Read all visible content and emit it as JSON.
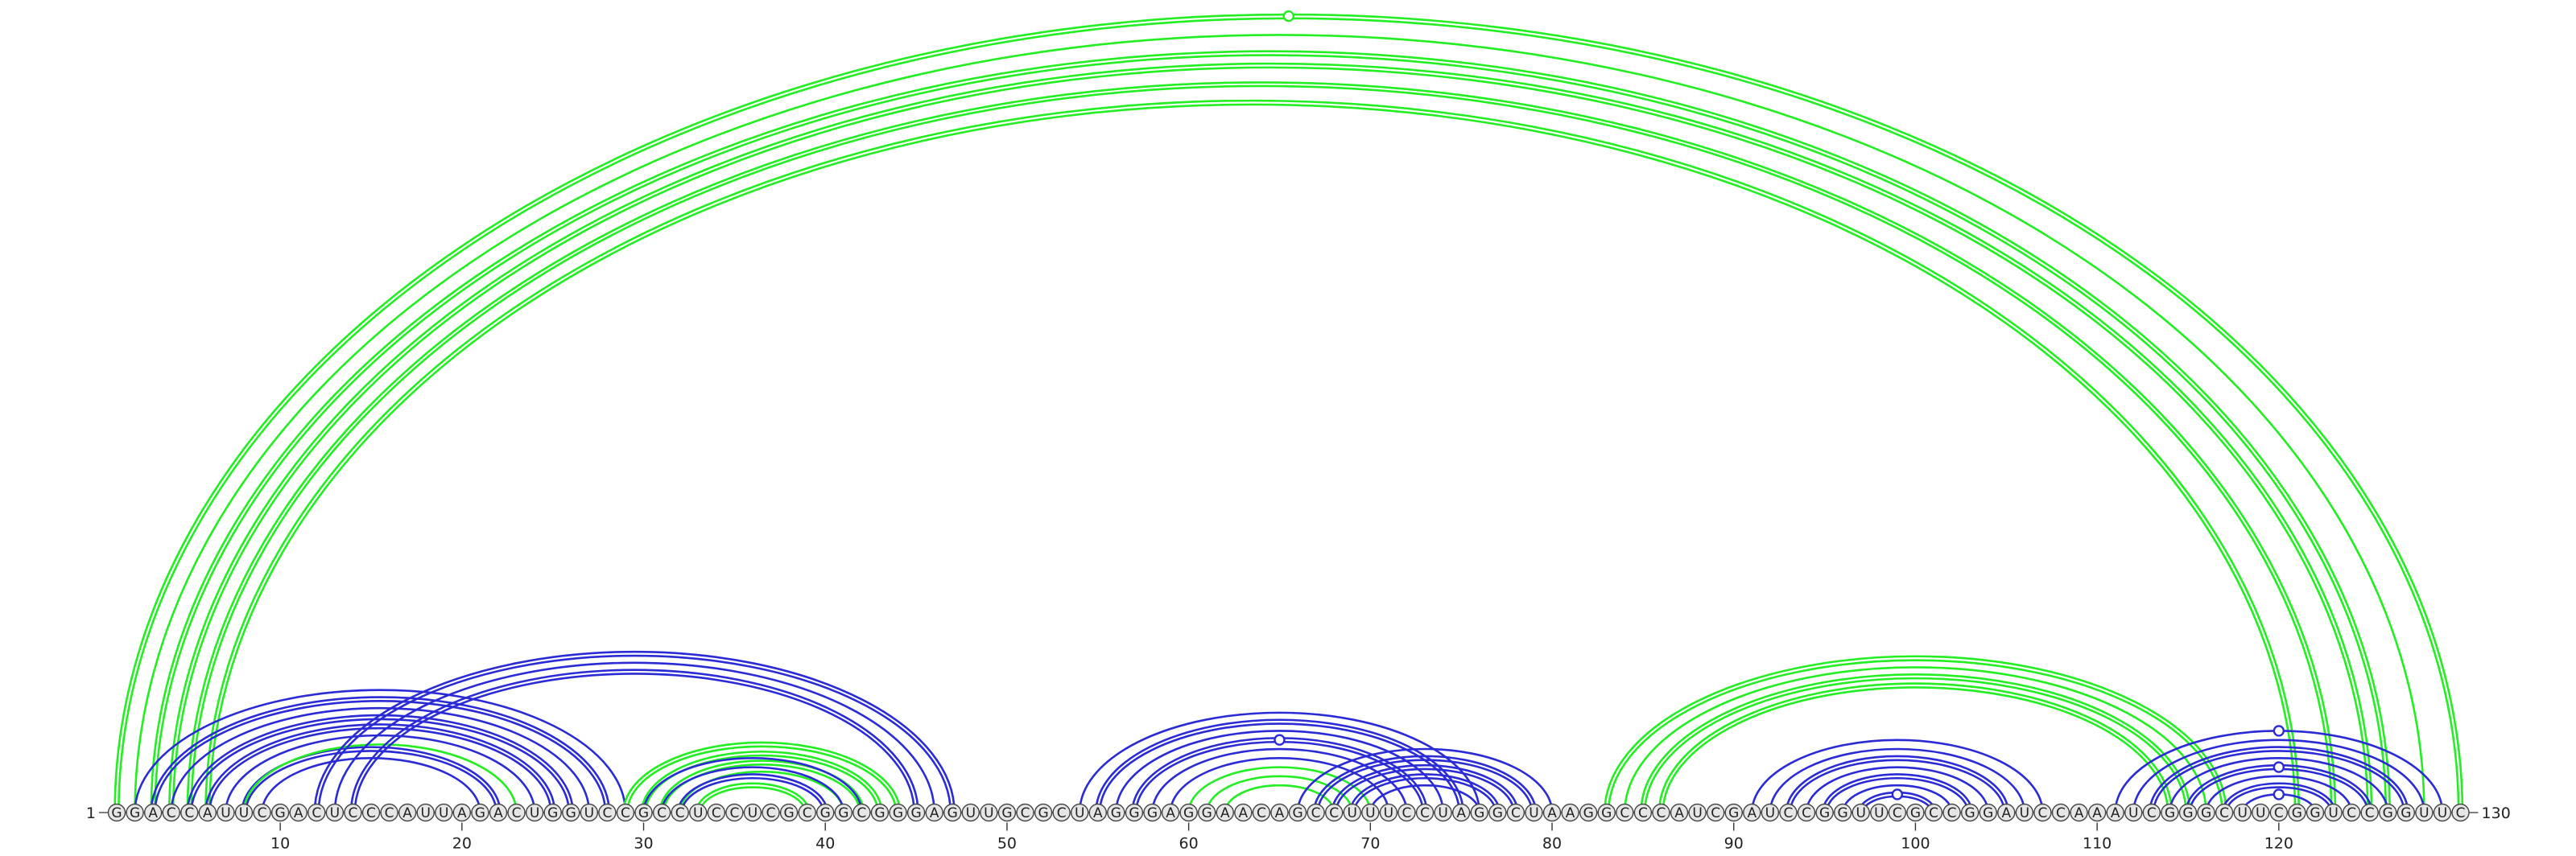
{
  "chart_data": {
    "type": "arc",
    "sequence": "GGACCAUUCGACUCCCAUUAGACUGGUCCGCCUCCUCGCGGCGGGAGUUGCGCUAGGGAGGAACAGCCUUUCCUAGGCUAAGGCCCAUCGAUCCGGUUCGCCGGAUCCAAAUCGGGCUUCGGUCCGGUUC",
    "length": 130,
    "start_label": "1",
    "end_label": "130",
    "ticks": [
      "10",
      "20",
      "30",
      "40",
      "50",
      "60",
      "70",
      "80",
      "90",
      "100",
      "110",
      "120"
    ],
    "colors": {
      "structure_a": "#2b2bd6",
      "structure_b": "#22ee22"
    },
    "arcs": [
      {
        "i": 1,
        "j": 130,
        "color": "green",
        "strands": 2
      },
      {
        "i": 2,
        "j": 128,
        "color": "green",
        "strands": 1
      },
      {
        "i": 3,
        "j": 126,
        "color": "green",
        "strands": 2
      },
      {
        "i": 4,
        "j": 125,
        "color": "green",
        "strands": 2
      },
      {
        "i": 5,
        "j": 123,
        "color": "green",
        "strands": 2
      },
      {
        "i": 6,
        "j": 121,
        "color": "green",
        "strands": 2
      },
      {
        "i": 2,
        "j": 29,
        "color": "blue",
        "strands": 1
      },
      {
        "i": 3,
        "j": 28,
        "color": "blue",
        "strands": 2
      },
      {
        "i": 4,
        "j": 27,
        "color": "blue",
        "strands": 1
      },
      {
        "i": 5,
        "j": 26,
        "color": "blue",
        "strands": 2
      },
      {
        "i": 6,
        "j": 25,
        "color": "blue",
        "strands": 2
      },
      {
        "i": 7,
        "j": 24,
        "color": "blue",
        "strands": 1
      },
      {
        "i": 8,
        "j": 22,
        "color": "blue",
        "strands": 2
      },
      {
        "i": 9,
        "j": 21,
        "color": "blue",
        "strands": 1
      },
      {
        "i": 8,
        "j": 23,
        "color": "green",
        "strands": 1
      },
      {
        "i": 12,
        "j": 47,
        "color": "blue",
        "strands": 2
      },
      {
        "i": 13,
        "j": 46,
        "color": "blue",
        "strands": 1
      },
      {
        "i": 14,
        "j": 45,
        "color": "blue",
        "strands": 2
      },
      {
        "i": 29,
        "j": 44,
        "color": "green",
        "strands": 2
      },
      {
        "i": 30,
        "j": 43,
        "color": "green",
        "strands": 2
      },
      {
        "i": 31,
        "j": 42,
        "color": "green",
        "strands": 2
      },
      {
        "i": 32,
        "j": 41,
        "color": "green",
        "strands": 1
      },
      {
        "i": 30,
        "j": 42,
        "color": "blue",
        "strands": 1
      },
      {
        "i": 31,
        "j": 41,
        "color": "blue",
        "strands": 1
      },
      {
        "i": 32,
        "j": 40,
        "color": "blue",
        "strands": 2
      },
      {
        "i": 33,
        "j": 39,
        "color": "green",
        "strands": 2
      },
      {
        "i": 54,
        "j": 76,
        "color": "blue",
        "strands": 1
      },
      {
        "i": 55,
        "j": 75,
        "color": "blue",
        "strands": 2
      },
      {
        "i": 56,
        "j": 74,
        "color": "blue",
        "strands": 1
      },
      {
        "i": 57,
        "j": 73,
        "color": "blue",
        "strands": 2
      },
      {
        "i": 58,
        "j": 72,
        "color": "blue",
        "strands": 1
      },
      {
        "i": 59,
        "j": 71,
        "color": "blue",
        "strands": 1
      },
      {
        "i": 60,
        "j": 70,
        "color": "green",
        "strands": 1
      },
      {
        "i": 61,
        "j": 69,
        "color": "green",
        "strands": 1
      },
      {
        "i": 62,
        "j": 68,
        "color": "green",
        "strands": 1
      },
      {
        "i": 66,
        "j": 80,
        "color": "blue",
        "strands": 1
      },
      {
        "i": 67,
        "j": 79,
        "color": "blue",
        "strands": 2
      },
      {
        "i": 68,
        "j": 78,
        "color": "blue",
        "strands": 2
      },
      {
        "i": 69,
        "j": 77,
        "color": "blue",
        "strands": 2
      },
      {
        "i": 70,
        "j": 76,
        "color": "blue",
        "strands": 1
      },
      {
        "i": 83,
        "j": 117,
        "color": "green",
        "strands": 2
      },
      {
        "i": 84,
        "j": 116,
        "color": "green",
        "strands": 1
      },
      {
        "i": 85,
        "j": 115,
        "color": "green",
        "strands": 2
      },
      {
        "i": 86,
        "j": 114,
        "color": "green",
        "strands": 2
      },
      {
        "i": 91,
        "j": 107,
        "color": "blue",
        "strands": 1
      },
      {
        "i": 92,
        "j": 106,
        "color": "blue",
        "strands": 1
      },
      {
        "i": 93,
        "j": 105,
        "color": "blue",
        "strands": 2
      },
      {
        "i": 94,
        "j": 104,
        "color": "blue",
        "strands": 1
      },
      {
        "i": 95,
        "j": 103,
        "color": "blue",
        "strands": 2
      },
      {
        "i": 96,
        "j": 102,
        "color": "blue",
        "strands": 1
      },
      {
        "i": 97,
        "j": 101,
        "color": "blue",
        "strands": 2
      },
      {
        "i": 111,
        "j": 129,
        "color": "blue",
        "strands": 1
      },
      {
        "i": 112,
        "j": 128,
        "color": "blue",
        "strands": 1
      },
      {
        "i": 113,
        "j": 127,
        "color": "blue",
        "strands": 2
      },
      {
        "i": 114,
        "j": 126,
        "color": "blue",
        "strands": 1
      },
      {
        "i": 115,
        "j": 125,
        "color": "blue",
        "strands": 2
      },
      {
        "i": 116,
        "j": 124,
        "color": "blue",
        "strands": 1
      },
      {
        "i": 117,
        "j": 123,
        "color": "blue",
        "strands": 2
      },
      {
        "i": 118,
        "j": 122,
        "color": "blue",
        "strands": 1
      }
    ],
    "markers": [
      {
        "i": 1,
        "j": 130,
        "color": "green"
      },
      {
        "i": 57,
        "j": 73,
        "color": "blue"
      },
      {
        "i": 97,
        "j": 101,
        "color": "blue"
      },
      {
        "i": 111,
        "j": 129,
        "color": "blue"
      },
      {
        "i": 115,
        "j": 125,
        "color": "blue"
      },
      {
        "i": 118,
        "j": 122,
        "color": "blue"
      }
    ]
  }
}
